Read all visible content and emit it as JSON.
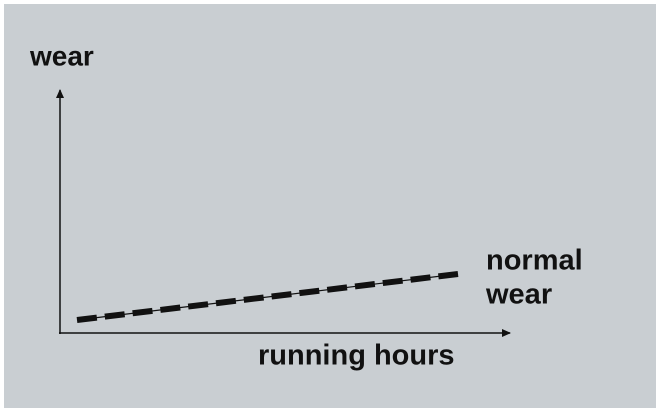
{
  "diagram": {
    "y_axis_label": "wear",
    "x_axis_label": "running hours",
    "line_label": [
      "normal",
      "wear"
    ]
  }
}
